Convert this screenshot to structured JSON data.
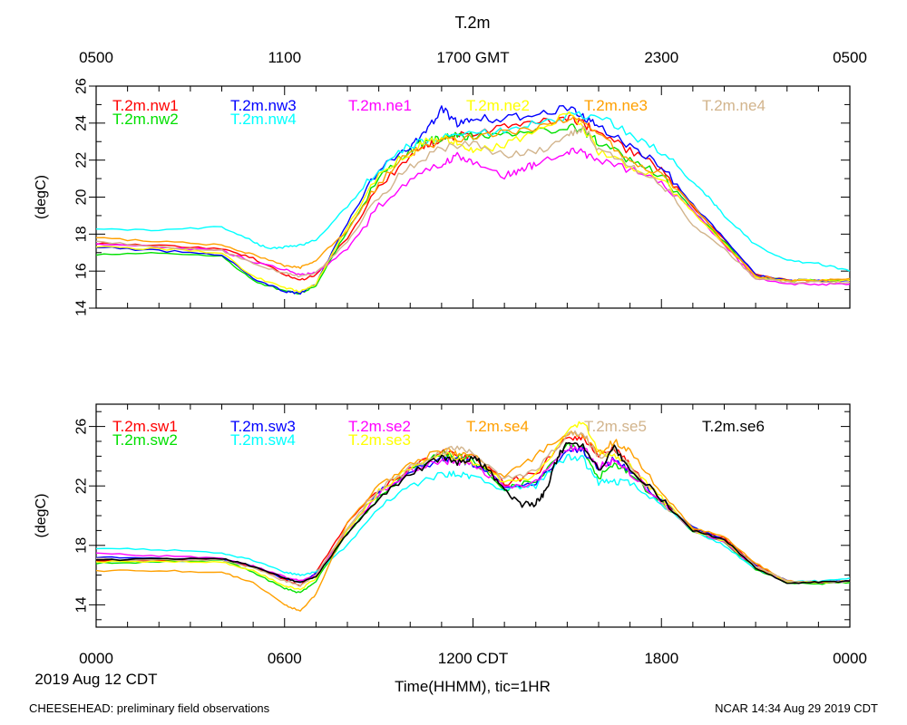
{
  "figure": {
    "title": "T.2m",
    "top_axis_ticks": [
      "0500",
      "1100",
      "1700 GMT",
      "2300",
      "0500"
    ],
    "bottom_axis_ticks": [
      "0000",
      "0600",
      "1200 CDT",
      "1800",
      "0000"
    ],
    "date_label": "2019 Aug 12 CDT",
    "xlabel": "Time(HHMM), tic=1HR",
    "footer_left": "CHEESEHEAD: preliminary field observations",
    "footer_right": "NCAR 14:34 Aug 29 2019 CDT"
  },
  "chart_data": [
    {
      "type": "line",
      "panel": "top",
      "ylabel": "(degC)",
      "ylim": [
        14,
        26
      ],
      "yticks": [
        "14",
        "16",
        "18",
        "20",
        "22",
        "24",
        "26"
      ],
      "x_unit": "hour CDT",
      "xlim": [
        0,
        24
      ],
      "series": [
        {
          "name": "T.2m.nw1",
          "color": "#ff0000",
          "x": [
            0,
            2,
            4,
            5,
            6,
            6.5,
            7,
            8,
            9,
            10,
            10.5,
            11,
            11.5,
            12,
            13,
            14,
            15,
            15.5,
            16,
            17,
            18,
            19,
            20,
            21,
            22,
            23,
            24
          ],
          "values": [
            17.5,
            17.4,
            17.2,
            16.7,
            15.8,
            15.5,
            15.8,
            17.8,
            20.5,
            22.3,
            22.8,
            23.0,
            23.3,
            23.5,
            23.8,
            24.0,
            24.3,
            24.0,
            23.5,
            22.5,
            21.5,
            19.5,
            17.7,
            15.8,
            15.5,
            15.5,
            15.5
          ]
        },
        {
          "name": "T.2m.nw2",
          "color": "#00e000",
          "x": [
            0,
            2,
            4,
            5,
            6,
            6.5,
            7,
            8,
            9,
            10,
            10.5,
            11,
            11.5,
            12,
            13,
            14,
            15,
            15.5,
            16,
            17,
            18,
            19,
            20,
            21,
            22,
            23,
            24
          ],
          "values": [
            16.9,
            17.0,
            16.8,
            15.5,
            14.9,
            14.8,
            15.2,
            18.2,
            21.0,
            22.6,
            23.0,
            23.2,
            23.3,
            23.3,
            23.4,
            23.5,
            23.8,
            23.6,
            23.0,
            22.0,
            21.2,
            19.3,
            17.6,
            15.7,
            15.5,
            15.5,
            15.5
          ]
        },
        {
          "name": "T.2m.nw3",
          "color": "#0000ff",
          "x": [
            0,
            2,
            4,
            5,
            6,
            6.5,
            7,
            8,
            9,
            10,
            10.5,
            11,
            11.5,
            12,
            13,
            14,
            15,
            15.5,
            16,
            17,
            18,
            19,
            20,
            21,
            22,
            23,
            24
          ],
          "values": [
            17.3,
            17.1,
            16.9,
            15.6,
            14.9,
            14.8,
            15.3,
            18.6,
            21.5,
            22.8,
            23.5,
            24.8,
            24.0,
            24.3,
            24.2,
            24.5,
            24.8,
            24.4,
            23.8,
            22.8,
            21.7,
            19.6,
            17.8,
            15.8,
            15.5,
            15.5,
            15.5
          ]
        },
        {
          "name": "T.2m.nw4",
          "color": "#00ffff",
          "x": [
            0,
            2,
            4,
            5,
            5.5,
            6,
            6.5,
            7,
            8,
            9,
            10,
            11,
            12,
            13,
            14,
            15,
            16,
            17,
            18,
            19,
            19.5,
            20,
            21,
            22,
            23,
            24
          ],
          "values": [
            18.3,
            18.2,
            18.4,
            17.6,
            17.2,
            17.3,
            17.4,
            17.7,
            19.5,
            21.5,
            22.8,
            23.2,
            23.4,
            23.6,
            24.0,
            24.4,
            24.4,
            23.4,
            22.5,
            20.8,
            20.0,
            19.0,
            17.4,
            16.6,
            16.4,
            16.0
          ]
        },
        {
          "name": "T.2m.ne1",
          "color": "#ff00ff",
          "x": [
            0,
            2,
            4,
            5,
            6,
            6.5,
            7,
            8,
            9,
            10,
            11,
            11.5,
            12,
            13,
            13.5,
            14,
            15,
            15.5,
            16,
            17,
            18,
            19,
            20,
            21,
            22,
            23,
            24
          ],
          "values": [
            17.5,
            17.3,
            17.1,
            16.5,
            16.1,
            15.8,
            15.9,
            17.2,
            19.5,
            20.9,
            21.8,
            22.2,
            21.8,
            21.1,
            21.5,
            21.8,
            22.5,
            22.4,
            22.0,
            21.5,
            20.8,
            19.3,
            17.4,
            15.6,
            15.3,
            15.3,
            15.3
          ]
        },
        {
          "name": "T.2m.ne2",
          "color": "#ffff00",
          "x": [
            0,
            2,
            4,
            5,
            6,
            6.5,
            7,
            8,
            9,
            10,
            10.5,
            11,
            11.5,
            12,
            13,
            14,
            15,
            15.5,
            16,
            17,
            18,
            19,
            20,
            21,
            22,
            23,
            24
          ],
          "values": [
            17.3,
            17.2,
            17.0,
            15.7,
            15.1,
            14.9,
            15.3,
            18.4,
            21.2,
            22.4,
            23.0,
            23.2,
            23.0,
            22.5,
            22.8,
            23.5,
            24.5,
            23.8,
            22.5,
            21.7,
            21.0,
            19.2,
            17.5,
            15.7,
            15.5,
            15.5,
            15.5
          ]
        },
        {
          "name": "T.2m.ne3",
          "color": "#ffa000",
          "x": [
            0,
            2,
            4,
            5,
            6,
            6.5,
            7,
            8,
            9,
            10,
            11,
            12,
            13,
            14,
            15,
            15.5,
            16,
            17,
            18,
            19,
            20,
            21,
            22,
            23,
            24
          ],
          "values": [
            17.8,
            17.6,
            17.4,
            16.9,
            16.3,
            16.2,
            16.6,
            18.2,
            20.8,
            22.5,
            23.0,
            23.3,
            23.5,
            23.7,
            24.3,
            24.2,
            23.4,
            22.0,
            21.3,
            19.6,
            17.5,
            15.7,
            15.5,
            15.5,
            15.6
          ]
        },
        {
          "name": "T.2m.ne4",
          "color": "#d2b48c",
          "x": [
            0,
            2,
            4,
            5,
            6,
            6.5,
            7,
            8,
            9,
            10,
            11,
            12,
            13,
            14,
            15,
            15.5,
            16,
            17,
            18,
            19,
            20,
            21,
            22,
            23,
            24
          ],
          "values": [
            17.6,
            17.3,
            17.1,
            16.4,
            15.9,
            15.7,
            15.9,
            17.6,
            20.0,
            21.7,
            22.6,
            22.9,
            22.3,
            22.4,
            23.2,
            23.8,
            22.6,
            21.7,
            20.8,
            18.5,
            17.2,
            15.6,
            15.4,
            15.4,
            15.4
          ]
        }
      ]
    },
    {
      "type": "line",
      "panel": "bottom",
      "ylabel": "(degC)",
      "ylim": [
        12.5,
        27.5
      ],
      "yticks": [
        "14",
        "18",
        "22",
        "26"
      ],
      "x_unit": "hour CDT",
      "xlim": [
        0,
        24
      ],
      "series": [
        {
          "name": "T.2m.sw1",
          "color": "#ff0000",
          "x": [
            0,
            2,
            4,
            5,
            6,
            6.5,
            7,
            8,
            9,
            10,
            11,
            11.5,
            12,
            13,
            14,
            15,
            15.5,
            16,
            16.5,
            17,
            18,
            19,
            20,
            21,
            22,
            23,
            24
          ],
          "values": [
            17.0,
            17.0,
            17.1,
            16.6,
            15.7,
            15.3,
            16.2,
            19.5,
            21.8,
            23.2,
            24.4,
            24.0,
            24.0,
            22.2,
            22.8,
            25.3,
            25.3,
            24.0,
            24.5,
            23.4,
            21.0,
            19.1,
            18.5,
            16.7,
            15.6,
            15.5,
            15.6
          ]
        },
        {
          "name": "T.2m.sw2",
          "color": "#00e000",
          "x": [
            0,
            2,
            4,
            5,
            6,
            6.5,
            7,
            8,
            9,
            10,
            11,
            11.5,
            12,
            13,
            14,
            15,
            15.5,
            16,
            16.5,
            17,
            18,
            19,
            20,
            21,
            22,
            23,
            24
          ],
          "values": [
            16.8,
            16.9,
            17.0,
            16.2,
            15.1,
            14.8,
            15.6,
            18.8,
            21.2,
            23.0,
            24.2,
            24.0,
            23.8,
            21.8,
            22.3,
            24.7,
            24.5,
            22.6,
            23.4,
            22.8,
            20.9,
            18.9,
            18.2,
            16.4,
            15.5,
            15.4,
            15.5
          ]
        },
        {
          "name": "T.2m.sw3",
          "color": "#0000ff",
          "x": [
            0,
            2,
            4,
            5,
            6,
            6.5,
            7,
            8,
            9,
            10,
            11,
            11.5,
            12,
            13,
            14,
            15,
            15.5,
            16,
            16.5,
            17,
            18,
            19,
            20,
            21,
            22,
            23,
            24
          ],
          "values": [
            17.2,
            17.1,
            17.1,
            16.6,
            15.8,
            15.5,
            16.1,
            19.0,
            21.5,
            23.0,
            23.8,
            23.8,
            23.5,
            22.0,
            22.2,
            24.5,
            24.4,
            23.2,
            23.8,
            23.0,
            21.0,
            19.2,
            18.4,
            16.6,
            15.6,
            15.5,
            15.6
          ]
        },
        {
          "name": "T.2m.sw4",
          "color": "#00ffff",
          "x": [
            0,
            2,
            4,
            5,
            6,
            6.5,
            7,
            8,
            9,
            10,
            11,
            11.5,
            12,
            13,
            14,
            15,
            15.5,
            16,
            16.5,
            17,
            18,
            19,
            20,
            21,
            22,
            23,
            24
          ],
          "values": [
            17.8,
            17.7,
            17.5,
            17.0,
            16.2,
            16.0,
            16.2,
            18.0,
            20.5,
            22.0,
            22.8,
            22.8,
            22.6,
            21.8,
            22.0,
            24.0,
            23.8,
            22.2,
            22.3,
            22.2,
            20.8,
            19.0,
            18.0,
            16.4,
            15.6,
            15.6,
            15.8
          ]
        },
        {
          "name": "T.2m.se2",
          "color": "#ff00ff",
          "x": [
            0,
            2,
            4,
            5,
            6,
            6.5,
            7,
            8,
            9,
            10,
            11,
            11.5,
            12,
            13,
            14,
            15,
            15.5,
            16,
            16.5,
            17,
            18,
            19,
            20,
            21,
            22,
            23,
            24
          ],
          "values": [
            17.5,
            17.3,
            17.1,
            16.6,
            15.9,
            15.6,
            16.0,
            19.0,
            21.5,
            23.0,
            23.7,
            23.6,
            23.5,
            22.0,
            22.2,
            24.5,
            24.6,
            23.3,
            23.7,
            22.9,
            21.0,
            19.0,
            18.2,
            16.5,
            15.6,
            15.5,
            15.6
          ]
        },
        {
          "name": "T.2m.se3",
          "color": "#ffff00",
          "x": [
            0,
            2,
            4,
            5,
            6,
            6.5,
            7,
            8,
            9,
            10,
            11,
            11.5,
            12,
            13,
            14,
            15,
            15.5,
            16,
            16.5,
            17,
            18,
            19,
            20,
            21,
            22,
            23,
            24
          ],
          "values": [
            16.9,
            16.9,
            16.9,
            16.3,
            15.3,
            15.0,
            15.8,
            19.0,
            21.6,
            23.2,
            24.2,
            23.8,
            23.6,
            22.3,
            22.7,
            25.6,
            26.4,
            24.2,
            24.0,
            23.3,
            21.2,
            19.0,
            18.3,
            16.5,
            15.6,
            15.5,
            15.6
          ]
        },
        {
          "name": "T.2m.se4",
          "color": "#ffa000",
          "x": [
            0,
            2,
            4,
            5,
            6,
            6.5,
            7,
            8,
            9,
            10,
            11,
            11.5,
            12,
            13,
            14,
            15,
            15.5,
            16,
            16.5,
            17,
            18,
            19,
            20,
            21,
            22,
            23,
            24
          ],
          "values": [
            16.3,
            16.3,
            16.2,
            15.5,
            14.0,
            13.6,
            14.7,
            19.5,
            22.0,
            23.5,
            24.4,
            24.2,
            24.0,
            22.6,
            24.0,
            25.6,
            25.4,
            24.2,
            25.0,
            24.3,
            21.5,
            19.2,
            18.6,
            16.8,
            15.6,
            15.5,
            15.6
          ]
        },
        {
          "name": "T.2m.se5",
          "color": "#d2b48c",
          "x": [
            0,
            2,
            4,
            5,
            6,
            6.5,
            7,
            8,
            9,
            10,
            11,
            11.5,
            12,
            13,
            14,
            15,
            15.5,
            16,
            16.5,
            17,
            18,
            19,
            20,
            21,
            22,
            23,
            24
          ],
          "values": [
            17.1,
            17.0,
            17.0,
            16.5,
            15.6,
            15.3,
            16.0,
            19.2,
            21.7,
            23.2,
            24.2,
            24.6,
            24.2,
            22.5,
            23.0,
            25.5,
            25.6,
            24.0,
            24.4,
            23.2,
            21.0,
            19.0,
            18.4,
            16.6,
            15.6,
            15.5,
            15.6
          ]
        },
        {
          "name": "T.2m.se6",
          "color": "#000000",
          "x": [
            0,
            2,
            4,
            5,
            6,
            6.5,
            7,
            8,
            9,
            10,
            11,
            11.5,
            12,
            12.5,
            13,
            13.5,
            14,
            14.3,
            14.7,
            15,
            15.5,
            16,
            16.5,
            17,
            18,
            19,
            20,
            21,
            22,
            23,
            24
          ],
          "values": [
            17.0,
            17.1,
            17.1,
            16.6,
            15.8,
            15.5,
            15.9,
            18.8,
            21.2,
            22.8,
            23.9,
            23.5,
            24.0,
            23.0,
            21.8,
            20.7,
            20.8,
            21.6,
            24.0,
            24.8,
            24.6,
            23.0,
            24.6,
            23.2,
            21.1,
            19.0,
            18.4,
            16.5,
            15.5,
            15.5,
            15.6
          ]
        }
      ]
    }
  ]
}
